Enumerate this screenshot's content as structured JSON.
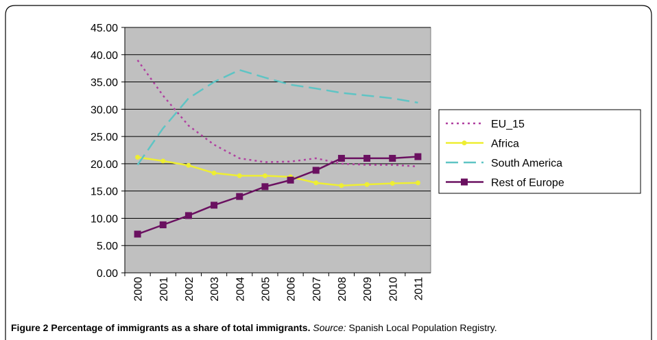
{
  "chart_data": {
    "type": "line",
    "categories": [
      "2000",
      "2001",
      "2002",
      "2003",
      "2004",
      "2005",
      "2006",
      "2007",
      "2008",
      "2009",
      "2010",
      "2011"
    ],
    "series": [
      {
        "name": "EU_15",
        "color": "#b040a0",
        "dash": "dotted",
        "marker": "none",
        "values": [
          39.0,
          32.5,
          27.0,
          23.5,
          21.0,
          20.3,
          20.4,
          21.0,
          20.0,
          19.8,
          19.8,
          19.5
        ]
      },
      {
        "name": "Africa",
        "color": "#eeee33",
        "dash": "solid",
        "marker": "circle",
        "values": [
          21.2,
          20.5,
          19.7,
          18.3,
          17.8,
          17.8,
          17.6,
          16.5,
          16.0,
          16.2,
          16.4,
          16.5
        ]
      },
      {
        "name": "South America",
        "color": "#5ec4c4",
        "dash": "dashed",
        "marker": "none",
        "values": [
          19.8,
          26.5,
          32.0,
          35.0,
          37.2,
          35.8,
          34.5,
          33.8,
          33.0,
          32.5,
          32.0,
          31.2
        ]
      },
      {
        "name": "Rest of Europe",
        "color": "#6a1060",
        "dash": "solid",
        "marker": "square",
        "values": [
          7.1,
          8.8,
          10.5,
          12.4,
          14.0,
          15.8,
          17.0,
          18.8,
          21.0,
          21.0,
          21.0,
          21.3
        ]
      }
    ],
    "ylim": [
      0,
      45
    ],
    "yticks": [
      {
        "value": 0,
        "label": "0.00"
      },
      {
        "value": 5,
        "label": "5.00"
      },
      {
        "value": 10,
        "label": "10.00"
      },
      {
        "value": 15,
        "label": "15.00"
      },
      {
        "value": 20,
        "label": "20.00"
      },
      {
        "value": 25,
        "label": "25.00"
      },
      {
        "value": 30,
        "label": "30.00"
      },
      {
        "value": 35,
        "label": "35.00"
      },
      {
        "value": 40,
        "label": "40.00"
      },
      {
        "value": 45,
        "label": "45.00"
      }
    ],
    "grid": true
  },
  "caption": {
    "label": "Figure 2",
    "title": "Percentage of immigrants as a share of total immigrants.",
    "source_label": "Source:",
    "source": "Spanish Local Population Registry."
  }
}
